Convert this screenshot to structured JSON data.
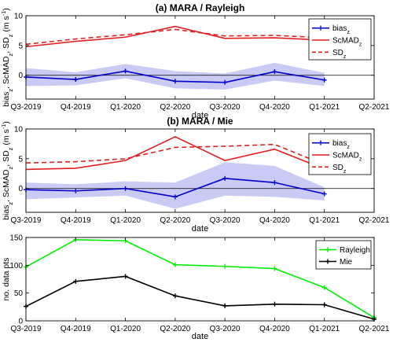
{
  "x_ticks": [
    "Q3-2019",
    "Q4-2019",
    "Q1-2020",
    "Q2-2020",
    "Q3-2020",
    "Q4-2020",
    "Q1-2021",
    "Q2-2021"
  ],
  "chart_data": [
    {
      "type": "line",
      "title": "(a) MARA / Rayleigh",
      "xlabel": "date",
      "ylabel": "bias_z, ScMAD_z, SD_z (m s^-1)",
      "ylabel_parts": [
        "bias",
        "z",
        ", ScMAD",
        "z",
        ", SD",
        "z",
        " (m s",
        "-1",
        ")"
      ],
      "ylim": [
        -4,
        10
      ],
      "yticks": [
        0,
        5,
        10
      ],
      "categories": [
        "Q3-2019",
        "Q4-2019",
        "Q1-2020",
        "Q2-2020",
        "Q3-2020",
        "Q4-2020",
        "Q1-2021",
        "Q2-2021"
      ],
      "legend_position": "top-right",
      "grid": false,
      "series": [
        {
          "name": "bias_z",
          "name_parts": [
            "bias",
            "z"
          ],
          "color": "#0000cc",
          "style": "solid-marker",
          "values": [
            -0.3,
            -0.7,
            0.7,
            -1.0,
            -1.2,
            0.6,
            -0.8,
            null
          ],
          "band_lower": [
            -1.8,
            -1.7,
            -0.5,
            -2.2,
            -2.4,
            -0.9,
            -1.8,
            null
          ],
          "band_upper": [
            1.2,
            0.5,
            1.9,
            0.7,
            0.3,
            2.1,
            0.4,
            null
          ]
        },
        {
          "name": "ScMAD_z",
          "name_parts": [
            "ScMAD",
            "z"
          ],
          "color": "#e02020",
          "style": "solid",
          "values": [
            4.8,
            5.7,
            6.4,
            8.2,
            6.2,
            6.3,
            5.9,
            null
          ]
        },
        {
          "name": "SD_z",
          "name_parts": [
            "SD",
            "z"
          ],
          "color": "#e02020",
          "style": "dashed",
          "values": [
            5.2,
            6.1,
            6.8,
            7.7,
            6.6,
            6.7,
            6.3,
            null
          ]
        }
      ]
    },
    {
      "type": "line",
      "title": "(b) MARA / Mie",
      "xlabel": "date",
      "ylabel": "bias_z, ScMAD_z, SD_z (m s^-1)",
      "ylabel_parts": [
        "bias",
        "z",
        ", ScMAD",
        "z",
        ", SD",
        "z",
        " (m s",
        "-1",
        ")"
      ],
      "ylim": [
        -4,
        10
      ],
      "yticks": [
        0,
        5,
        10
      ],
      "categories": [
        "Q3-2019",
        "Q4-2019",
        "Q1-2020",
        "Q2-2020",
        "Q3-2020",
        "Q4-2020",
        "Q1-2021",
        "Q2-2021"
      ],
      "legend_position": "top-right",
      "grid": false,
      "series": [
        {
          "name": "bias_z",
          "name_parts": [
            "bias",
            "z"
          ],
          "color": "#0000cc",
          "style": "solid-marker",
          "values": [
            -0.2,
            -0.4,
            0.0,
            -1.4,
            1.7,
            1.0,
            -0.9,
            null
          ],
          "band_lower": [
            -1.8,
            -1.5,
            -1.2,
            -3.4,
            -1.2,
            -1.4,
            -2.0,
            null
          ],
          "band_upper": [
            1.0,
            0.7,
            1.2,
            1.0,
            4.4,
            3.8,
            0.2,
            null
          ]
        },
        {
          "name": "ScMAD_z",
          "name_parts": [
            "ScMAD",
            "z"
          ],
          "color": "#e02020",
          "style": "solid",
          "values": [
            3.2,
            3.4,
            4.7,
            8.7,
            4.7,
            6.6,
            3.3,
            null
          ]
        },
        {
          "name": "SD_z",
          "name_parts": [
            "SD",
            "z"
          ],
          "color": "#e02020",
          "style": "dashed",
          "values": [
            4.3,
            4.5,
            5.0,
            6.9,
            7.1,
            7.4,
            4.0,
            null
          ]
        }
      ]
    },
    {
      "type": "line",
      "title": "",
      "xlabel": "date",
      "ylabel": "no. data pts",
      "ylim": [
        0,
        150
      ],
      "yticks": [
        0,
        50,
        100,
        150
      ],
      "categories": [
        "Q3-2019",
        "Q4-2019",
        "Q1-2020",
        "Q2-2020",
        "Q3-2020",
        "Q4-2020",
        "Q1-2021",
        "Q2-2021"
      ],
      "legend_position": "top-right",
      "grid": false,
      "series": [
        {
          "name": "Rayleigh",
          "color": "#00ee00",
          "style": "solid-marker",
          "values": [
            97,
            146,
            144,
            101,
            98,
            94,
            60,
            6
          ]
        },
        {
          "name": "Mie",
          "color": "#000000",
          "style": "solid-marker",
          "values": [
            26,
            71,
            80,
            45,
            27,
            30,
            29,
            3
          ]
        }
      ]
    }
  ]
}
